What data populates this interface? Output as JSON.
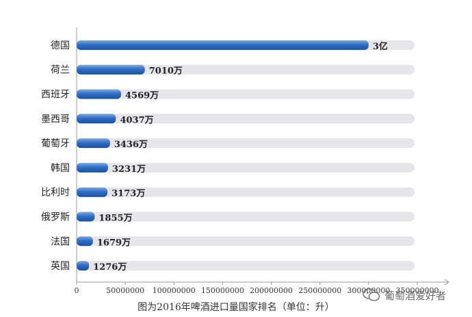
{
  "chart_data": {
    "type": "bar",
    "orientation": "horizontal",
    "categories": [
      "德国",
      "荷兰",
      "西班牙",
      "墨西哥",
      "葡萄牙",
      "韩国",
      "比利时",
      "俄罗斯",
      "法国",
      "英国"
    ],
    "values": [
      300000000,
      70100000,
      45690000,
      40370000,
      34360000,
      32310000,
      31730000,
      18550000,
      16790000,
      12760000
    ],
    "data_labels": [
      "3亿",
      "7010万",
      "4569万",
      "4037万",
      "3436万",
      "3231万",
      "3173万",
      "1855万",
      "1679万",
      "1276万"
    ],
    "xlim": [
      0,
      350000000
    ],
    "x_ticks": [
      0,
      50000000,
      100000000,
      150000000,
      200000000,
      250000000,
      300000000,
      350000000
    ],
    "x_tick_labels": [
      "0",
      "50000000",
      "100000000",
      "150000000",
      "200000000",
      "250000000",
      "300000000",
      "350000000"
    ],
    "caption": "图为2016年啤酒进口量国家排名（单位：升）",
    "grid": false,
    "colors": {
      "bar": "#2f6fc7",
      "bar_light": "#7aaae6",
      "track": "#e6e6ea",
      "axis": "#999999"
    }
  },
  "watermark": {
    "text": "葡萄酒爱好者",
    "icon": "wechat-icon"
  }
}
